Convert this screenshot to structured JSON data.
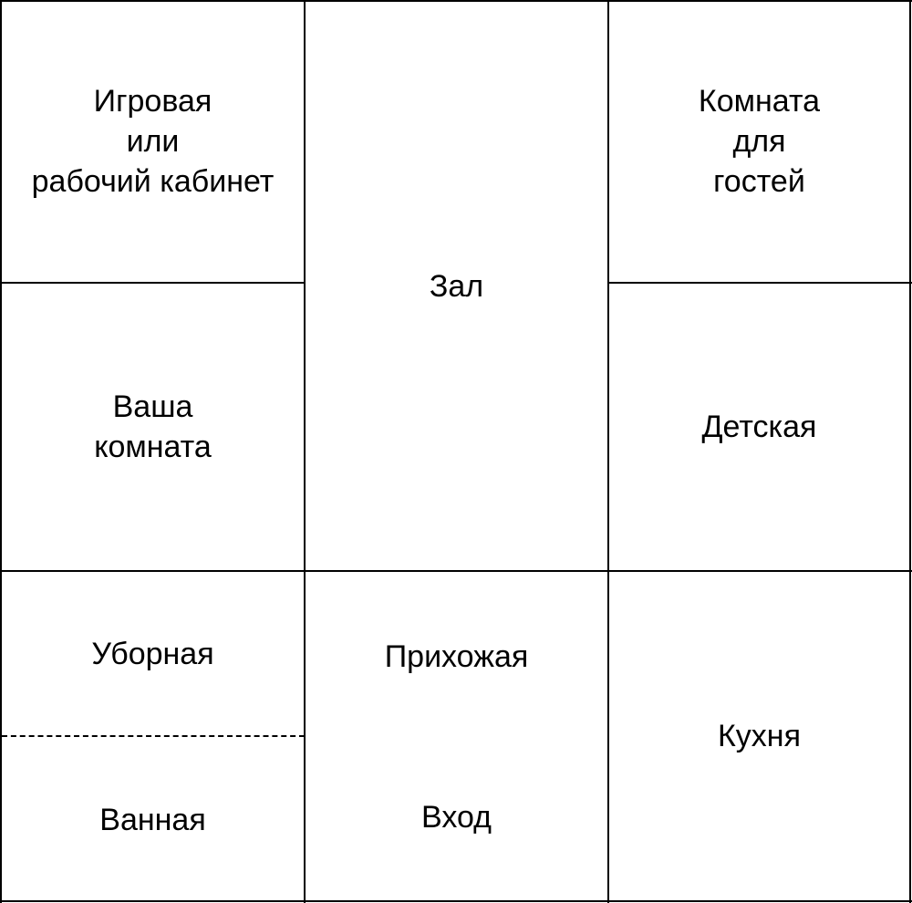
{
  "rooms": {
    "game_room": "Игровая\nили\nрабочий кабинет",
    "hall": "Зал",
    "guest_room": "Комната\nдля\nгостей",
    "your_room": "Ваша\nкомната",
    "kids_room": "Детская",
    "toilet": "Уборная",
    "bathroom": "Ванная",
    "hallway": "Прихожая",
    "entrance": "Вход",
    "kitchen": "Кухня"
  }
}
